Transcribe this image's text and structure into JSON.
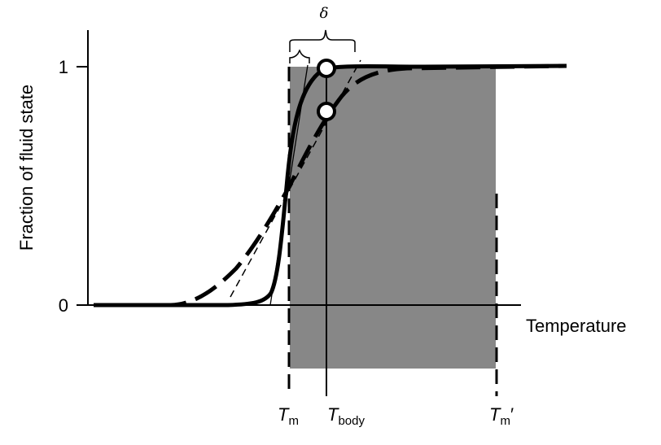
{
  "diagram": {
    "y_axis_label": "Fraction of  fluid state",
    "x_axis_label": "Temperature",
    "y_ticks": [
      "0",
      "1"
    ],
    "delta_symbol": "δ",
    "markers": {
      "tm": {
        "main": "T",
        "sub": "m",
        "suffix": ""
      },
      "tbody": {
        "main": "T",
        "sub": "body",
        "suffix": ""
      },
      "tm_prime": {
        "main": "T",
        "sub": "m",
        "suffix": "′"
      }
    },
    "colors": {
      "shaded_region": "#878787",
      "curves": "#000000",
      "background": "#ffffff"
    }
  }
}
